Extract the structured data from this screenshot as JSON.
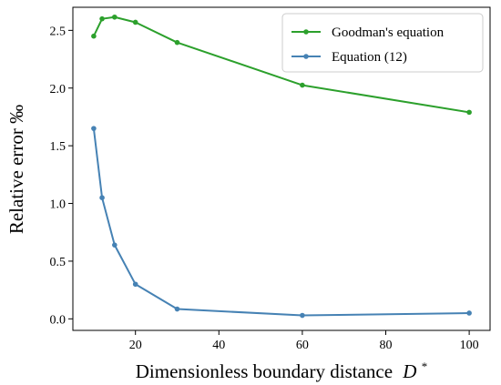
{
  "chart_data": {
    "type": "line",
    "xlabel": "Dimensionless boundary distance",
    "xlabel_symbol": "D",
    "xlabel_superscript": "*",
    "ylabel": "Relative error ‰",
    "xlim": [
      5,
      105
    ],
    "ylim": [
      -0.1,
      2.7
    ],
    "xticks": [
      20,
      40,
      60,
      80,
      100
    ],
    "yticks": [
      0.0,
      0.5,
      1.0,
      1.5,
      2.0,
      2.5
    ],
    "xtick_labels": [
      "20",
      "40",
      "60",
      "80",
      "100"
    ],
    "ytick_labels": [
      "0.0",
      "0.5",
      "1.0",
      "1.5",
      "2.0",
      "2.5"
    ],
    "grid": false,
    "legend_position": "top-right",
    "series": [
      {
        "name": "Goodman's equation",
        "color": "#2ca02c",
        "x": [
          10,
          12,
          15,
          20,
          30,
          60,
          100
        ],
        "y": [
          2.45,
          2.6,
          2.615,
          2.57,
          2.395,
          2.025,
          1.79
        ]
      },
      {
        "name": "Equation (12)",
        "color": "#4682b4",
        "x": [
          10,
          12,
          15,
          20,
          30,
          60,
          100
        ],
        "y": [
          1.65,
          1.05,
          0.64,
          0.3,
          0.085,
          0.03,
          0.05
        ]
      }
    ]
  }
}
